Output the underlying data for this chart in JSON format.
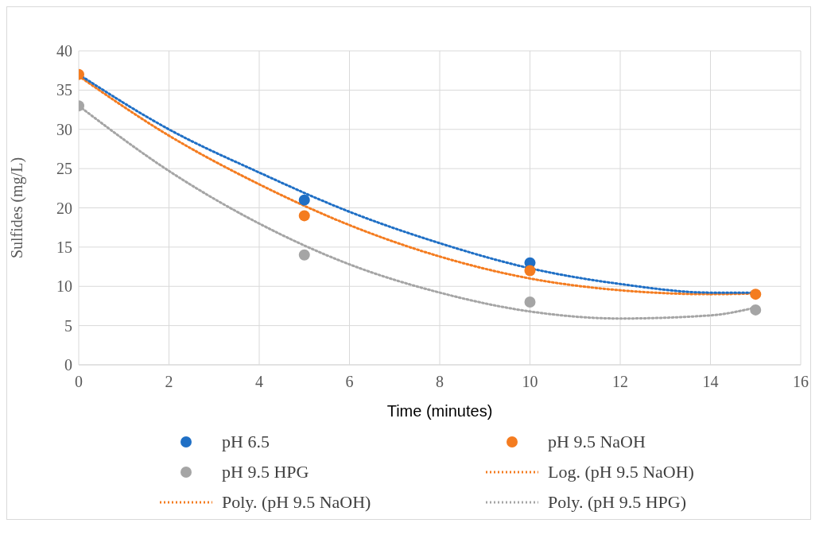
{
  "chart_data": {
    "type": "scatter",
    "xlabel": "Time (minutes)",
    "ylabel": "Sulfides (mg/L)",
    "xlim": [
      0,
      16
    ],
    "xticks": [
      0,
      2,
      4,
      6,
      8,
      10,
      12,
      14,
      16
    ],
    "ylim": [
      0,
      40
    ],
    "yticks": [
      0,
      5,
      10,
      15,
      20,
      25,
      30,
      35,
      40
    ],
    "grid": true,
    "legend": "bottom",
    "marker": "circle",
    "series": [
      {
        "name": "pH 6.5",
        "color": "#1f6fc5",
        "x": [
          5,
          10
        ],
        "values": [
          21,
          13
        ]
      },
      {
        "name": "pH 9.5 NaOH",
        "color": "#f47c20",
        "x": [
          0,
          5,
          10,
          15
        ],
        "values": [
          37,
          19,
          12,
          9
        ]
      },
      {
        "name": "pH 9.5 HPG",
        "color": "#a5a5a5",
        "x": [
          0,
          5,
          10,
          15
        ],
        "values": [
          33,
          14,
          8,
          7
        ]
      },
      {
        "name": "Log. (pH 9.5 NaOH)",
        "type": "line",
        "color": "#f47c20",
        "line_style": "dotted",
        "marker": "none"
      },
      {
        "name": "Poly. (pH 9.5 NaOH)",
        "type": "line",
        "color": "#f47c20",
        "line_style": "dotted",
        "marker": "none",
        "x": [
          0,
          2,
          4,
          6,
          8,
          10,
          12,
          14,
          15
        ],
        "values": [
          36.8,
          29.2,
          23,
          17.8,
          13.8,
          11,
          9.5,
          9,
          9.1
        ]
      },
      {
        "name": "Poly. (pH 9.5 HPG)",
        "type": "line",
        "color": "#a5a5a5",
        "line_style": "dotted",
        "marker": "none",
        "x": [
          0,
          2,
          4,
          6,
          8,
          10,
          12,
          14,
          15
        ],
        "values": [
          33,
          24.7,
          18,
          12.8,
          9.2,
          6.8,
          5.9,
          6.3,
          7.3
        ]
      },
      {
        "type": "line",
        "color": "#1f6fc5",
        "line_style": "dotted",
        "marker": "none",
        "x": [
          0,
          2,
          4,
          6,
          8,
          10,
          12,
          14,
          15
        ],
        "values": [
          37,
          30,
          24.5,
          19.5,
          15.5,
          12.3,
          10.3,
          9.2,
          9.2
        ]
      }
    ]
  }
}
